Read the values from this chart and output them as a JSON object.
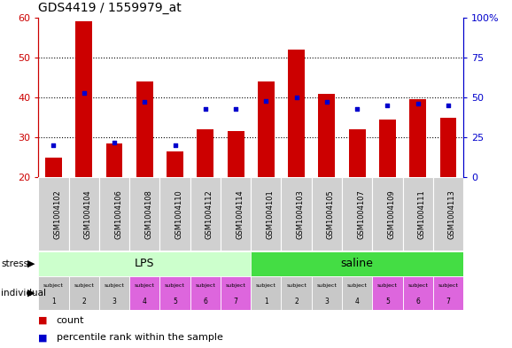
{
  "title": "GDS4419 / 1559979_at",
  "samples": [
    "GSM1004102",
    "GSM1004104",
    "GSM1004106",
    "GSM1004108",
    "GSM1004110",
    "GSM1004112",
    "GSM1004114",
    "GSM1004101",
    "GSM1004103",
    "GSM1004105",
    "GSM1004107",
    "GSM1004109",
    "GSM1004111",
    "GSM1004113"
  ],
  "count_values": [
    25,
    59,
    28.5,
    44,
    26.5,
    32,
    31.5,
    44,
    52,
    41,
    32,
    34.5,
    39.5,
    35
  ],
  "percentile_values": [
    20,
    53,
    22,
    47,
    20,
    43,
    43,
    48,
    50,
    47,
    43,
    45,
    46,
    45
  ],
  "ylim_left": [
    20,
    60
  ],
  "ylim_right": [
    0,
    100
  ],
  "yticks_left": [
    20,
    30,
    40,
    50,
    60
  ],
  "yticks_right": [
    0,
    25,
    50,
    75,
    100
  ],
  "left_tick_labels": [
    "20",
    "30",
    "40",
    "50",
    "60"
  ],
  "right_tick_labels": [
    "0",
    "25",
    "50",
    "75",
    "100%"
  ],
  "bar_color": "#cc0000",
  "percentile_color": "#0000cc",
  "lps_bg_color": "#ccffcc",
  "saline_bg_color": "#44dd44",
  "ind_gray": "#c8c8c8",
  "ind_pink": "#dd66dd",
  "individual_colors": [
    "#c8c8c8",
    "#c8c8c8",
    "#c8c8c8",
    "#dd66dd",
    "#dd66dd",
    "#dd66dd",
    "#dd66dd",
    "#c8c8c8",
    "#c8c8c8",
    "#c8c8c8",
    "#c8c8c8",
    "#dd66dd",
    "#dd66dd",
    "#dd66dd"
  ],
  "axis_color_left": "#cc0000",
  "axis_color_right": "#0000cc",
  "xticklabel_bg": "#d0d0d0"
}
